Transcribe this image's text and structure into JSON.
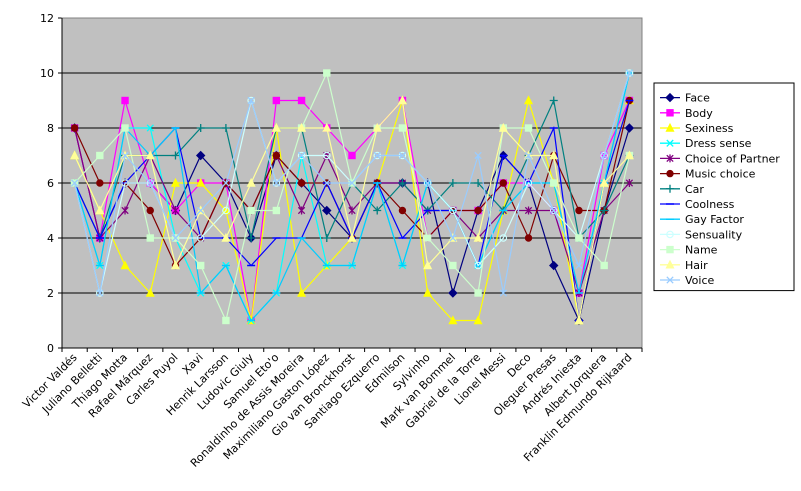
{
  "chart_data": {
    "type": "line",
    "title": "",
    "xlabel": "",
    "ylabel": "",
    "ylim": [
      0,
      12
    ],
    "yticks": [
      0,
      2,
      4,
      6,
      8,
      10,
      12
    ],
    "grid": true,
    "legend_position": "right",
    "plot_background": "#c0c0c0",
    "categories": [
      "Victor Valdés",
      "Juliano Belletti",
      "Thiago Motta",
      "Rafael Márquez",
      "Carles Puyol",
      "Xavi",
      "Henrik Larsson",
      "Ludovic Giuly",
      "Samuel Eto'o",
      "Ronaldinho de Assis Moreira",
      "Maximiliano Gaston López",
      "Gio van Bronckhorst",
      "Santiago Ezquerro",
      "Edmilson",
      "Sylvinho",
      "Mark van Bommel",
      "Gabriel de la Torre",
      "Lionel Messi",
      "Deco",
      "Oleguer Presas",
      "Andrés Iniesta",
      "Albert Jorquera",
      "Franklin Edmundo Rijkaard"
    ],
    "series": [
      {
        "name": "Face",
        "color": "#000080",
        "marker": "diamond",
        "values": [
          8,
          4,
          6,
          6,
          5,
          7,
          6,
          4,
          7,
          6,
          5,
          4,
          6,
          6,
          6,
          2,
          5,
          7,
          6,
          3,
          1,
          5,
          8
        ]
      },
      {
        "name": "Body",
        "color": "#ff00ff",
        "marker": "square",
        "values": [
          8,
          4,
          9,
          6,
          5,
          6,
          6,
          1,
          9,
          9,
          8,
          7,
          8,
          9,
          4,
          5,
          5,
          6,
          6,
          5,
          2,
          7,
          9
        ]
      },
      {
        "name": "Sexiness",
        "color": "#ffff00",
        "marker": "triangle",
        "values": [
          7,
          5,
          3,
          2,
          6,
          6,
          5,
          1,
          8,
          2,
          3,
          4,
          6,
          9,
          2,
          1,
          1,
          5,
          9,
          6,
          1,
          6,
          9
        ]
      },
      {
        "name": "Dress sense",
        "color": "#00ffff",
        "marker": "x",
        "values": [
          6,
          3,
          8,
          8,
          4,
          2,
          3,
          1,
          2,
          7,
          3,
          3,
          6,
          3,
          6,
          5,
          3,
          5,
          6,
          6,
          2,
          6,
          10
        ]
      },
      {
        "name": "Choice of Partner",
        "color": "#800080",
        "marker": "star",
        "values": [
          8,
          4,
          5,
          7,
          5,
          4,
          6,
          5,
          7,
          5,
          7,
          5,
          6,
          6,
          5,
          5,
          4,
          5,
          5,
          5,
          2,
          5,
          6
        ]
      },
      {
        "name": "Music choice",
        "color": "#800000",
        "marker": "circle",
        "values": [
          8,
          6,
          6,
          5,
          3,
          4,
          6,
          5,
          7,
          6,
          6,
          4,
          6,
          5,
          4,
          5,
          5,
          6,
          4,
          7,
          5,
          5,
          9
        ]
      },
      {
        "name": "Car",
        "color": "#008080",
        "marker": "plus",
        "values": [
          6,
          4,
          7,
          7,
          7,
          8,
          8,
          4,
          8,
          8,
          4,
          6,
          5,
          6,
          5,
          6,
          6,
          5,
          7,
          9,
          4,
          5,
          7
        ]
      },
      {
        "name": "Coolness",
        "color": "#0000ff",
        "marker": "dash",
        "values": [
          6,
          4,
          6,
          7,
          8,
          4,
          4,
          3,
          4,
          4,
          6,
          4,
          6,
          4,
          5,
          5,
          3,
          7,
          6,
          8,
          1,
          6,
          9
        ]
      },
      {
        "name": "Gay Factor",
        "color": "#00ccff",
        "marker": "dash",
        "values": [
          6,
          3,
          8,
          7,
          8,
          2,
          3,
          1,
          2,
          4,
          3,
          3,
          6,
          3,
          6,
          5,
          3,
          5,
          6,
          6,
          2,
          6,
          10
        ]
      },
      {
        "name": "Sensuality",
        "color": "#ccffff",
        "marker": "circle-open",
        "values": [
          6,
          2,
          6,
          6,
          4,
          4,
          5,
          9,
          6,
          7,
          7,
          6,
          7,
          7,
          6,
          5,
          3,
          4,
          6,
          5,
          4,
          7,
          10
        ]
      },
      {
        "name": "Name",
        "color": "#ccffcc",
        "marker": "square",
        "values": [
          6,
          7,
          8,
          4,
          4,
          3,
          1,
          5,
          5,
          8,
          10,
          6,
          8,
          8,
          4,
          3,
          2,
          8,
          8,
          6,
          4,
          3,
          7
        ]
      },
      {
        "name": "Hair",
        "color": "#ffff99",
        "marker": "triangle",
        "values": [
          7,
          5,
          7,
          7,
          3,
          5,
          4,
          6,
          8,
          8,
          8,
          4,
          8,
          9,
          3,
          4,
          4,
          8,
          7,
          7,
          1,
          6,
          7
        ]
      },
      {
        "name": "Voice",
        "color": "#99ccff",
        "marker": "x",
        "values": [
          6,
          2,
          7,
          6,
          4,
          5,
          6,
          9,
          6,
          7,
          6,
          6,
          7,
          7,
          6,
          4,
          7,
          2,
          7,
          5,
          3,
          7,
          10
        ]
      }
    ]
  }
}
